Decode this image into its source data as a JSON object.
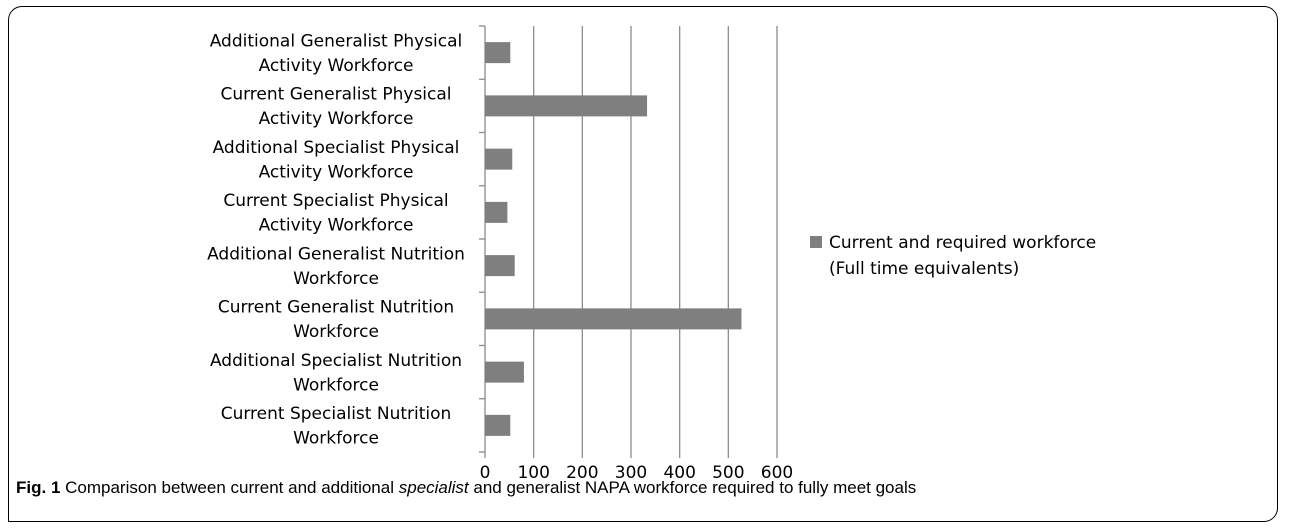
{
  "chart_data": {
    "type": "bar",
    "orientation": "horizontal",
    "categories": [
      [
        "Additional Generalist Physical",
        "Activity Workforce"
      ],
      [
        "Current Generalist Physical",
        "Activity Workforce"
      ],
      [
        "Additional Specialist Physical",
        "Activity Workforce"
      ],
      [
        "Current Specialist Physical",
        "Activity Workforce"
      ],
      [
        "Additional Generalist Nutrition",
        "Workforce"
      ],
      [
        "Current Generalist Nutrition",
        "Workforce"
      ],
      [
        "Additional Specialist Nutrition",
        "Workforce"
      ],
      [
        "Current Specialist Nutrition",
        "Workforce"
      ]
    ],
    "series": [
      {
        "name": "Current and required workforce (Full time equivalents)",
        "values": [
          52,
          333,
          56,
          46,
          61,
          527,
          80,
          52
        ]
      }
    ],
    "xlim": [
      0,
      600
    ],
    "xticks": [
      0,
      100,
      200,
      300,
      400,
      500,
      600
    ],
    "grid": "vertical",
    "legend_position": "right",
    "legend_lines": [
      "Current and required workforce",
      "(Full time equivalents)"
    ],
    "colors": {
      "bar": "#7f7f7f",
      "grid": "#8c8c8c",
      "axis": "#8c8c8c"
    }
  },
  "caption": {
    "label": "Fig. 1",
    "text_before": " Comparison between current and additional ",
    "emphasis": "specialist",
    "text_after": " and generalist NAPA workforce required to fully meet goals"
  }
}
